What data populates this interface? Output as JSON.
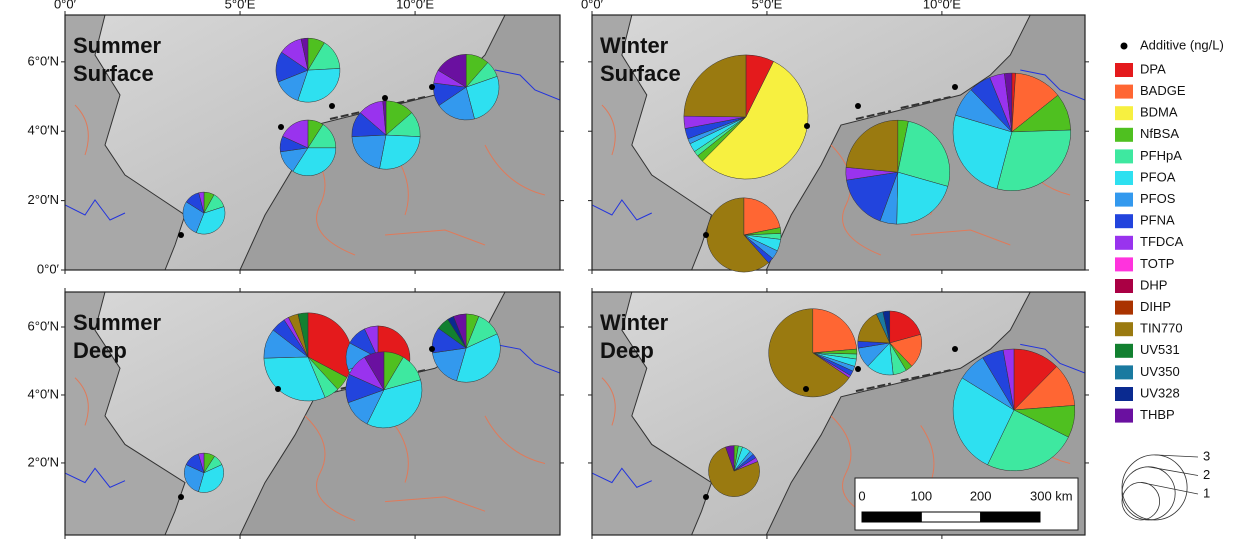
{
  "legend": {
    "title": "Additive (ng/L)",
    "components": [
      {
        "name": "DPA",
        "color": "#e41a1c"
      },
      {
        "name": "BADGE",
        "color": "#ff6633"
      },
      {
        "name": "BDMA",
        "color": "#f7f040"
      },
      {
        "name": "NfBSA",
        "color": "#4fc020"
      },
      {
        "name": "PFHpA",
        "color": "#3ee8a0"
      },
      {
        "name": "PFOA",
        "color": "#2ee0f0"
      },
      {
        "name": "PFOS",
        "color": "#3399ee"
      },
      {
        "name": "PFNA",
        "color": "#2244dd"
      },
      {
        "name": "TFDCA",
        "color": "#9933ee"
      },
      {
        "name": "TOTP",
        "color": "#ff33dd"
      },
      {
        "name": "DHP",
        "color": "#aa0044"
      },
      {
        "name": "DIHP",
        "color": "#aa3300"
      },
      {
        "name": "TIN770",
        "color": "#9a7a10"
      },
      {
        "name": "UV531",
        "color": "#128030"
      },
      {
        "name": "UV350",
        "color": "#1a7aa0"
      },
      {
        "name": "UV328",
        "color": "#0a2a90"
      },
      {
        "name": "THBP",
        "color": "#6a10a0"
      }
    ]
  },
  "size_legend": {
    "values": [
      1,
      2,
      3
    ]
  },
  "scale_bar": {
    "ticks": [
      0,
      100,
      200,
      {
        "value": 300,
        "label": "300 km"
      }
    ]
  },
  "panels": [
    {
      "title_lines": [
        "Summer",
        "Surface"
      ],
      "xlim": [
        0,
        14.14
      ],
      "ylim": [
        0,
        7.35
      ],
      "xticks": [
        {
          "value": 0,
          "label": "0°0′"
        },
        {
          "value": 5,
          "label": "5°0′E"
        },
        {
          "value": 10,
          "label": "10°0′E"
        }
      ],
      "yticks": [
        {
          "value": 0,
          "label": "0°0′"
        },
        {
          "value": 2,
          "label": "2°0′N"
        },
        {
          "value": 4,
          "label": "4°0′N"
        },
        {
          "value": 6,
          "label": "6°0′N"
        }
      ],
      "pies": [
        {
          "lon": 6.94,
          "lat": 5.76,
          "values": [
            0,
            0,
            0,
            0.25,
            0.45,
            0.9,
            0.4,
            0.45,
            0.35,
            0,
            0,
            0,
            0,
            0,
            0,
            0,
            0.1
          ]
        },
        {
          "lon": 6.94,
          "lat": 3.52,
          "values": [
            0,
            0,
            0,
            0.2,
            0.35,
            0.75,
            0.3,
            0.2,
            0.4,
            0,
            0,
            0,
            0,
            0,
            0,
            0,
            0
          ]
        },
        {
          "lon": 9.17,
          "lat": 3.89,
          "values": [
            0,
            0,
            0,
            0.45,
            0.4,
            0.9,
            0.7,
            0.4,
            0.4,
            0,
            0,
            0,
            0,
            0,
            0,
            0,
            0.05
          ]
        },
        {
          "lon": 11.46,
          "lat": 5.27,
          "values": [
            0,
            0,
            0,
            0.35,
            0.25,
            0.8,
            0.6,
            0.35,
            0.2,
            0,
            0,
            0,
            0,
            0,
            0,
            0,
            0.5
          ]
        },
        {
          "lon": 3.97,
          "lat": 1.64,
          "values": [
            0,
            0,
            0,
            0.1,
            0.15,
            0.45,
            0.35,
            0.15,
            0.05,
            0,
            0,
            0,
            0,
            0,
            0,
            0,
            0
          ]
        }
      ]
    },
    {
      "title_lines": [
        "Winter",
        "Surface"
      ],
      "xlim": [
        0,
        14.09
      ],
      "ylim": [
        0,
        7.35
      ],
      "xticks": [
        {
          "value": 0,
          "label": "0°0′"
        },
        {
          "value": 5,
          "label": "5°0′E"
        },
        {
          "value": 10,
          "label": "10°0′E"
        }
      ],
      "pies": [
        {
          "lon": 4.4,
          "lat": 4.41,
          "values": [
            0.8,
            0,
            6.0,
            0.2,
            0.15,
            0.25,
            0.15,
            0.3,
            0.35,
            0,
            0,
            0,
            2.7,
            0,
            0,
            0,
            0
          ]
        },
        {
          "lon": 4.34,
          "lat": 1.01,
          "values": [
            0,
            0.85,
            0,
            0.1,
            0.1,
            0.2,
            0.15,
            0.1,
            0,
            0,
            0,
            0,
            2.4,
            0,
            0,
            0,
            0
          ]
        },
        {
          "lon": 8.74,
          "lat": 2.82,
          "values": [
            0,
            0,
            0,
            0.25,
            2.0,
            1.6,
            0.4,
            1.3,
            0.3,
            0,
            0,
            0,
            1.8,
            0,
            0,
            0,
            0
          ]
        },
        {
          "lon": 12.0,
          "lat": 3.98,
          "values": [
            0.1,
            1.3,
            0,
            1.0,
            2.9,
            2.5,
            0.8,
            0.6,
            0.4,
            0,
            0,
            0,
            0,
            0,
            0,
            0,
            0.2
          ]
        }
      ]
    },
    {
      "title_lines": [
        "Summer",
        "Deep"
      ],
      "xlim": [
        0,
        14.14
      ],
      "ylim": [
        -0.12,
        7.03
      ],
      "yticks": [
        {
          "value": 2,
          "label": "2°0′N"
        },
        {
          "value": 4,
          "label": "4°0′N"
        },
        {
          "value": 6,
          "label": "6°0′N"
        }
      ],
      "pies": [
        {
          "lon": 6.94,
          "lat": 5.12,
          "values": [
            1.8,
            0,
            0,
            0.3,
            0.3,
            1.7,
            0.6,
            0.3,
            0.1,
            0,
            0,
            0,
            0.2,
            0.2,
            0,
            0,
            0
          ]
        },
        {
          "lon": 8.94,
          "lat": 5.09,
          "values": [
            1.2,
            0,
            0,
            0,
            0,
            0.8,
            0.4,
            0.3,
            0.2,
            0,
            0,
            0,
            0,
            0,
            0,
            0,
            0
          ]
        },
        {
          "lon": 9.11,
          "lat": 4.15,
          "values": [
            0,
            0,
            0,
            0.35,
            0.5,
            1.5,
            0.5,
            0.5,
            0.4,
            0,
            0,
            0,
            0,
            0,
            0,
            0,
            0.35
          ]
        },
        {
          "lon": 11.46,
          "lat": 5.38,
          "values": [
            0,
            0,
            0,
            0.2,
            0.4,
            1.2,
            0.6,
            0.4,
            0,
            0,
            0,
            0,
            0,
            0.2,
            0,
            0.1,
            0.2
          ]
        },
        {
          "lon": 3.97,
          "lat": 1.71,
          "values": [
            0,
            0,
            0,
            0.1,
            0.1,
            0.4,
            0.3,
            0.15,
            0.05,
            0,
            0,
            0,
            0,
            0,
            0,
            0,
            0
          ]
        }
      ]
    },
    {
      "title_lines": [
        "Winter",
        "Deep"
      ],
      "xlim": [
        0,
        14.09
      ],
      "ylim": [
        -0.12,
        7.03
      ],
      "pies": [
        {
          "lon": 6.31,
          "lat": 5.24,
          "values": [
            0,
            1.3,
            0,
            0.1,
            0.1,
            0.15,
            0.1,
            0.1,
            0.05,
            0,
            0,
            0,
            3.6,
            0,
            0,
            0,
            0
          ]
        },
        {
          "lon": 8.51,
          "lat": 5.53,
          "values": [
            0.6,
            0.5,
            0,
            0.1,
            0.2,
            0.4,
            0.3,
            0.1,
            0,
            0,
            0,
            0,
            0.5,
            0,
            0.1,
            0.1,
            0
          ]
        },
        {
          "lon": 12.06,
          "lat": 3.56,
          "values": [
            1.3,
            1.2,
            0,
            0.9,
            2.6,
            2.8,
            0.8,
            0.6,
            0.3,
            0,
            0,
            0,
            0,
            0,
            0,
            0,
            0
          ]
        },
        {
          "lon": 4.06,
          "lat": 1.76,
          "values": [
            0,
            0,
            0,
            0.05,
            0.05,
            0.1,
            0.05,
            0.05,
            0.05,
            0,
            0,
            0,
            1.4,
            0,
            0,
            0,
            0.1
          ]
        }
      ]
    }
  ]
}
